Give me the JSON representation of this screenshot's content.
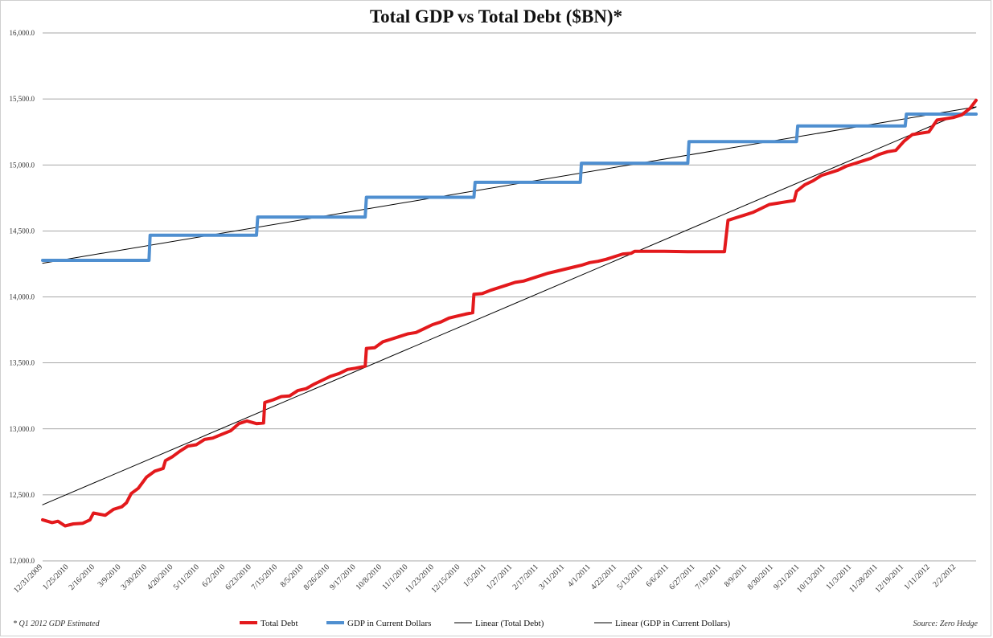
{
  "chart_data": {
    "type": "line",
    "title": "Total GDP vs Total Debt ($BN)*",
    "footnote": "* Q1 2012 GDP Estimated",
    "source": "Source: Zero Hedge",
    "ylim": [
      12000,
      16000
    ],
    "y_ticks": [
      "12,000.0",
      "12,500.0",
      "13,000.0",
      "13,500.0",
      "14,000.0",
      "14,500.0",
      "15,000.0",
      "15,500.0",
      "16,000.0"
    ],
    "y_tick_values": [
      12000,
      12500,
      13000,
      13500,
      14000,
      14500,
      15000,
      15500,
      16000
    ],
    "x_range": [
      "2009-12-31",
      "2012-02-29"
    ],
    "x_ticks": [
      "12/31/2009",
      "1/25/2010",
      "2/16/2010",
      "3/9/2010",
      "3/30/2010",
      "4/20/2010",
      "5/11/2010",
      "6/2/2010",
      "6/23/2010",
      "7/15/2010",
      "8/5/2010",
      "8/26/2010",
      "9/17/2010",
      "10/8/2010",
      "11/1/2010",
      "11/23/2010",
      "12/15/2010",
      "1/5/2011",
      "1/27/2011",
      "2/17/2011",
      "3/11/2011",
      "4/1/2011",
      "4/22/2011",
      "5/13/2011",
      "6/6/2011",
      "6/27/2011",
      "7/19/2011",
      "8/9/2011",
      "8/30/2011",
      "9/21/2011",
      "10/13/2011",
      "11/3/2011",
      "11/28/2011",
      "12/19/2011",
      "1/11/2012",
      "2/2/2012"
    ],
    "grid": true,
    "legend_position": "bottom",
    "series": [
      {
        "name": "Total Debt",
        "color": "#e3191c",
        "style": "step",
        "points": [
          [
            "2009-12-31",
            12311
          ],
          [
            "2010-01-08",
            12290
          ],
          [
            "2010-01-13",
            12300
          ],
          [
            "2010-01-19",
            12265
          ],
          [
            "2010-01-26",
            12280
          ],
          [
            "2010-02-03",
            12285
          ],
          [
            "2010-02-09",
            12310
          ],
          [
            "2010-02-12",
            12362
          ],
          [
            "2010-02-22",
            12345
          ],
          [
            "2010-03-01",
            12390
          ],
          [
            "2010-03-08",
            12410
          ],
          [
            "2010-03-12",
            12440
          ],
          [
            "2010-03-16",
            12510
          ],
          [
            "2010-03-22",
            12550
          ],
          [
            "2010-03-29",
            12635
          ],
          [
            "2010-04-05",
            12680
          ],
          [
            "2010-04-12",
            12700
          ],
          [
            "2010-04-14",
            12760
          ],
          [
            "2010-04-20",
            12790
          ],
          [
            "2010-04-26",
            12830
          ],
          [
            "2010-05-03",
            12870
          ],
          [
            "2010-05-10",
            12880
          ],
          [
            "2010-05-17",
            12920
          ],
          [
            "2010-05-24",
            12930
          ],
          [
            "2010-06-01",
            12960
          ],
          [
            "2010-06-08",
            12985
          ],
          [
            "2010-06-15",
            13040
          ],
          [
            "2010-06-22",
            13060
          ],
          [
            "2010-06-30",
            13040
          ],
          [
            "2010-07-06",
            13045
          ],
          [
            "2010-07-07",
            13200
          ],
          [
            "2010-07-14",
            13220
          ],
          [
            "2010-07-21",
            13245
          ],
          [
            "2010-07-28",
            13250
          ],
          [
            "2010-08-04",
            13290
          ],
          [
            "2010-08-11",
            13305
          ],
          [
            "2010-08-18",
            13340
          ],
          [
            "2010-08-25",
            13370
          ],
          [
            "2010-09-01",
            13400
          ],
          [
            "2010-09-08",
            13420
          ],
          [
            "2010-09-15",
            13450
          ],
          [
            "2010-09-22",
            13460
          ],
          [
            "2010-09-30",
            13475
          ],
          [
            "2010-10-01",
            13610
          ],
          [
            "2010-10-08",
            13615
          ],
          [
            "2010-10-15",
            13660
          ],
          [
            "2010-10-22",
            13680
          ],
          [
            "2010-10-29",
            13700
          ],
          [
            "2010-11-05",
            13720
          ],
          [
            "2010-11-12",
            13730
          ],
          [
            "2010-11-19",
            13760
          ],
          [
            "2010-11-26",
            13790
          ],
          [
            "2010-12-03",
            13810
          ],
          [
            "2010-12-10",
            13840
          ],
          [
            "2010-12-17",
            13855
          ],
          [
            "2010-12-24",
            13870
          ],
          [
            "2010-12-30",
            13880
          ],
          [
            "2010-12-31",
            14020
          ],
          [
            "2011-01-07",
            14025
          ],
          [
            "2011-01-14",
            14050
          ],
          [
            "2011-01-21",
            14070
          ],
          [
            "2011-01-28",
            14090
          ],
          [
            "2011-02-04",
            14110
          ],
          [
            "2011-02-11",
            14120
          ],
          [
            "2011-02-18",
            14140
          ],
          [
            "2011-02-25",
            14160
          ],
          [
            "2011-03-04",
            14180
          ],
          [
            "2011-03-11",
            14195
          ],
          [
            "2011-03-18",
            14210
          ],
          [
            "2011-03-25",
            14225
          ],
          [
            "2011-04-01",
            14240
          ],
          [
            "2011-04-08",
            14260
          ],
          [
            "2011-04-15",
            14270
          ],
          [
            "2011-04-22",
            14285
          ],
          [
            "2011-04-29",
            14305
          ],
          [
            "2011-05-06",
            14325
          ],
          [
            "2011-05-13",
            14330
          ],
          [
            "2011-05-16",
            14345
          ],
          [
            "2011-06-10",
            14345
          ],
          [
            "2011-06-30",
            14343
          ],
          [
            "2011-07-31",
            14343
          ],
          [
            "2011-08-03",
            14580
          ],
          [
            "2011-08-10",
            14600
          ],
          [
            "2011-08-17",
            14620
          ],
          [
            "2011-08-24",
            14640
          ],
          [
            "2011-08-31",
            14670
          ],
          [
            "2011-09-07",
            14700
          ],
          [
            "2011-09-14",
            14710
          ],
          [
            "2011-09-21",
            14720
          ],
          [
            "2011-09-28",
            14730
          ],
          [
            "2011-09-30",
            14800
          ],
          [
            "2011-10-07",
            14850
          ],
          [
            "2011-10-14",
            14880
          ],
          [
            "2011-10-21",
            14920
          ],
          [
            "2011-10-28",
            14940
          ],
          [
            "2011-11-04",
            14960
          ],
          [
            "2011-11-11",
            14990
          ],
          [
            "2011-11-18",
            15010
          ],
          [
            "2011-11-25",
            15030
          ],
          [
            "2011-12-02",
            15050
          ],
          [
            "2011-12-09",
            15080
          ],
          [
            "2011-12-16",
            15100
          ],
          [
            "2011-12-23",
            15110
          ],
          [
            "2011-12-30",
            15180
          ],
          [
            "2012-01-06",
            15230
          ],
          [
            "2012-01-13",
            15240
          ],
          [
            "2012-01-20",
            15250
          ],
          [
            "2012-01-27",
            15340
          ],
          [
            "2012-02-03",
            15350
          ],
          [
            "2012-02-10",
            15360
          ],
          [
            "2012-02-17",
            15380
          ],
          [
            "2012-02-24",
            15430
          ],
          [
            "2012-02-29",
            15490
          ]
        ]
      },
      {
        "name": "GDP in Current Dollars",
        "color": "#4f8fd0",
        "style": "step",
        "points": [
          [
            "2009-12-31",
            14277
          ],
          [
            "2010-03-31",
            14277
          ],
          [
            "2010-04-01",
            14467
          ],
          [
            "2010-06-30",
            14467
          ],
          [
            "2010-07-01",
            14605
          ],
          [
            "2010-09-30",
            14605
          ],
          [
            "2010-10-01",
            14755
          ],
          [
            "2010-12-31",
            14755
          ],
          [
            "2011-01-01",
            14868
          ],
          [
            "2011-03-31",
            14868
          ],
          [
            "2011-04-01",
            15013
          ],
          [
            "2011-06-30",
            15013
          ],
          [
            "2011-07-01",
            15177
          ],
          [
            "2011-09-30",
            15177
          ],
          [
            "2011-10-01",
            15295
          ],
          [
            "2011-12-31",
            15295
          ],
          [
            "2012-01-01",
            15385
          ],
          [
            "2012-02-29",
            15385
          ]
        ]
      },
      {
        "name": "Linear (Total Debt)",
        "color": "#000000",
        "style": "trend",
        "points": [
          [
            "2009-12-31",
            12425
          ],
          [
            "2012-02-29",
            15440
          ]
        ]
      },
      {
        "name": "Linear (GDP in Current Dollars)",
        "color": "#000000",
        "style": "trend",
        "points": [
          [
            "2009-12-31",
            14255
          ],
          [
            "2012-02-29",
            15440
          ]
        ]
      }
    ]
  }
}
